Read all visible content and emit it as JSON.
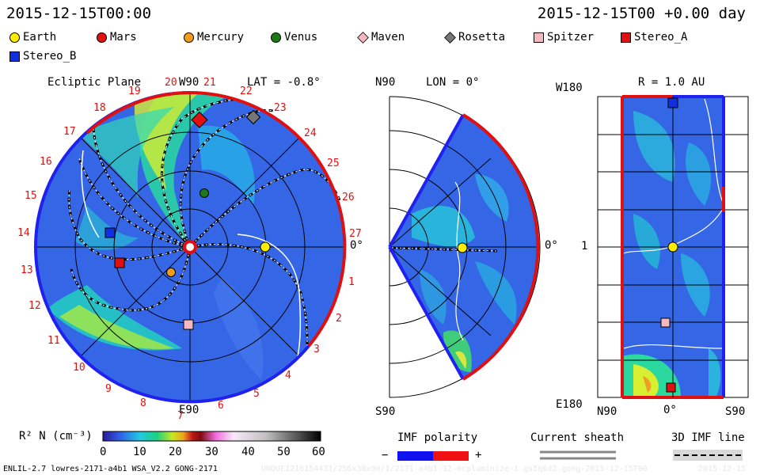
{
  "header": {
    "datetime": "2015-12-15T00:00",
    "offset": "2015-12-15T00 +0.00 day"
  },
  "legend": [
    {
      "name": "Earth",
      "color": "#ffee00",
      "shape": "circle"
    },
    {
      "name": "Mars",
      "color": "#e01010",
      "shape": "circle"
    },
    {
      "name": "Mercury",
      "color": "#f59c1a",
      "shape": "circle"
    },
    {
      "name": "Venus",
      "color": "#1a7a1a",
      "shape": "circle"
    },
    {
      "name": "Maven",
      "color": "#f6b8c0",
      "shape": "diamond"
    },
    {
      "name": "Rosetta",
      "color": "#777777",
      "shape": "diamond"
    },
    {
      "name": "Spitzer",
      "color": "#f6b8c0",
      "shape": "square"
    },
    {
      "name": "Stereo_A",
      "color": "#e01010",
      "shape": "square"
    },
    {
      "name": "Stereo_B",
      "color": "#1030e0",
      "shape": "square"
    }
  ],
  "panels": {
    "ecliptic": {
      "title": "Ecliptic Plane",
      "top": "W90",
      "bottom": "E90",
      "lat": "LAT = -0.8°",
      "right": "0°",
      "ticks": [
        "1",
        "2",
        "3",
        "4",
        "5",
        "6",
        "7",
        "8",
        "9",
        "10",
        "11",
        "12",
        "13",
        "14",
        "15",
        "16",
        "17",
        "18",
        "19",
        "20",
        "21",
        "22",
        "23",
        "24",
        "25",
        "26",
        "27"
      ]
    },
    "meridional": {
      "top": "N90",
      "lon": "LON = 0°",
      "bottom": "S90",
      "right": "0°"
    },
    "radial": {
      "r": "R = 1.0 AU",
      "top": "W180",
      "mid": "1",
      "bottom": "E180",
      "x_left": "N90",
      "x_mid": "0°",
      "x_right": "S90"
    }
  },
  "colorbar": {
    "label": "R² N (cm⁻³)",
    "ticks": [
      "0",
      "10",
      "20",
      "30",
      "40",
      "50",
      "60"
    ]
  },
  "keys": {
    "imf": "IMF polarity",
    "minus": "−",
    "plus": "+",
    "sheath": "Current sheath",
    "imf3d": "3D IMF line"
  },
  "footer": {
    "model": "ENLIL-2.7 lowres-2171-a4b1 WSA_V2.2 GONG-2171",
    "run": "UNQUE1216154431/256x30x90/1/2171-a4b1.32-mcpluminize-1.gs5q6d2.gong-2015-12-15T00",
    "date": "2015-12-15"
  }
}
